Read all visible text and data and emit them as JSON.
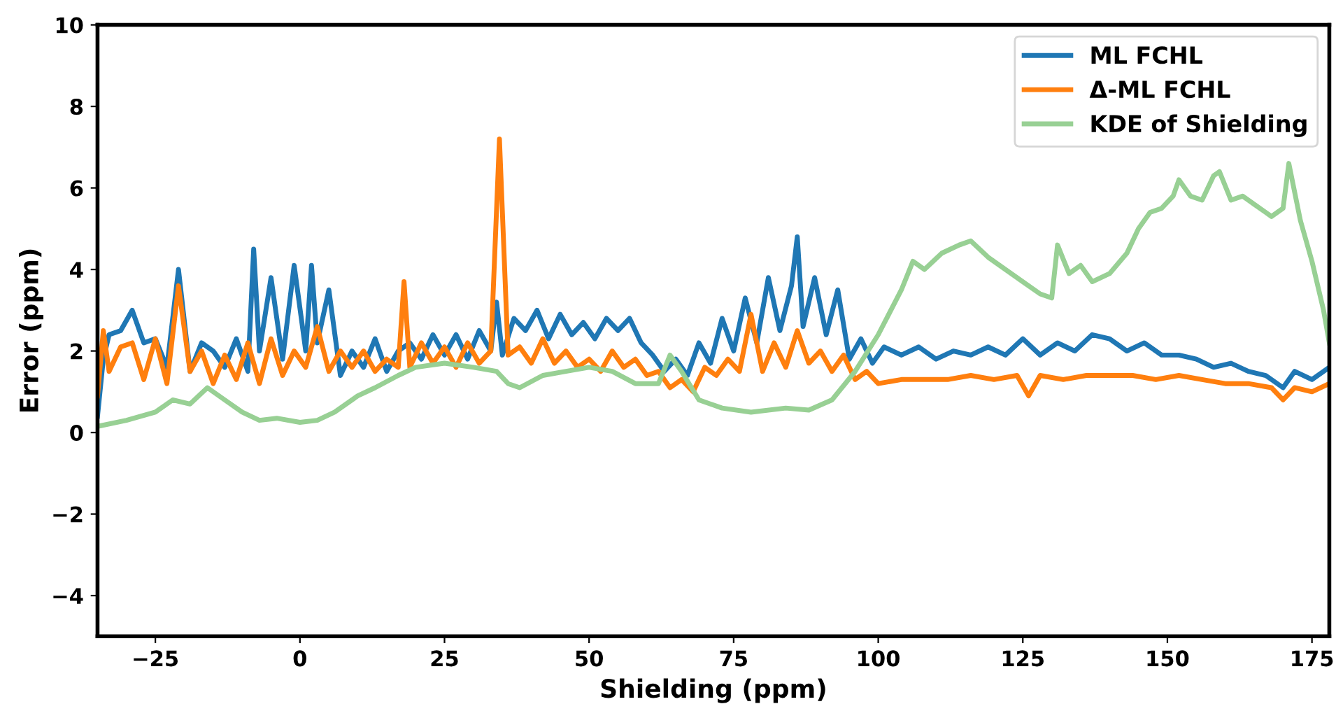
{
  "chart_data": {
    "type": "line",
    "xlabel": "Shielding (ppm)",
    "ylabel": "Error (ppm)",
    "xlim": [
      -35,
      178
    ],
    "ylim": [
      -5,
      10
    ],
    "xticks": [
      {
        "value": -25,
        "label": "−25"
      },
      0,
      25,
      50,
      75,
      100,
      125,
      150,
      175
    ],
    "yticks": [
      {
        "value": -4,
        "label": "−4"
      },
      {
        "value": -2,
        "label": "−2"
      },
      0,
      2,
      4,
      6,
      8,
      10
    ],
    "grid": false,
    "legend": "top right",
    "marker": "none",
    "line_style": "solid",
    "series": [
      {
        "name": "ML FCHL",
        "color": "#1f77b4",
        "x": [
          -35,
          -34,
          -33,
          -31,
          -29,
          -27,
          -25,
          -23,
          -21,
          -19,
          -17,
          -15,
          -13,
          -11,
          -9,
          -8,
          -7,
          -5,
          -3,
          -1,
          1,
          2,
          3,
          5,
          7,
          9,
          11,
          13,
          15,
          17,
          19,
          21,
          23,
          25,
          27,
          29,
          31,
          33,
          34,
          35,
          37,
          39,
          41,
          43,
          45,
          47,
          49,
          51,
          53,
          55,
          57,
          59,
          61,
          63,
          65,
          67,
          69,
          71,
          73,
          75,
          77,
          79,
          81,
          83,
          85,
          86,
          87,
          89,
          91,
          93,
          95,
          97,
          99,
          101,
          104,
          107,
          110,
          113,
          116,
          119,
          122,
          125,
          128,
          131,
          134,
          137,
          140,
          143,
          146,
          149,
          152,
          155,
          158,
          161,
          164,
          167,
          170,
          172,
          175,
          178
        ],
        "values": [
          0.4,
          1.8,
          2.4,
          2.5,
          3.0,
          2.2,
          2.3,
          1.6,
          4.0,
          1.5,
          2.2,
          2.0,
          1.6,
          2.3,
          1.5,
          4.5,
          2.0,
          3.8,
          1.8,
          4.1,
          2.0,
          4.1,
          2.2,
          3.5,
          1.4,
          2.0,
          1.6,
          2.3,
          1.5,
          2.0,
          2.2,
          1.8,
          2.4,
          1.9,
          2.4,
          1.8,
          2.5,
          2.0,
          3.2,
          1.9,
          2.8,
          2.5,
          3.0,
          2.3,
          2.9,
          2.4,
          2.7,
          2.3,
          2.8,
          2.5,
          2.8,
          2.2,
          1.9,
          1.5,
          1.8,
          1.4,
          2.2,
          1.7,
          2.8,
          2.0,
          3.3,
          2.2,
          3.8,
          2.5,
          3.6,
          4.8,
          2.6,
          3.8,
          2.4,
          3.5,
          1.8,
          2.3,
          1.7,
          2.1,
          1.9,
          2.1,
          1.8,
          2.0,
          1.9,
          2.1,
          1.9,
          2.3,
          1.9,
          2.2,
          2.0,
          2.4,
          2.3,
          2.0,
          2.2,
          1.9,
          1.9,
          1.8,
          1.6,
          1.7,
          1.5,
          1.4,
          1.1,
          1.5,
          1.3,
          1.6
        ]
      },
      {
        "name": "Δ-ML FCHL",
        "color": "#ff7f0e",
        "x": [
          -35,
          -34,
          -33,
          -31,
          -29,
          -27,
          -25,
          -23,
          -21,
          -19,
          -17,
          -15,
          -13,
          -11,
          -9,
          -7,
          -5,
          -3,
          -1,
          1,
          3,
          5,
          7,
          9,
          11,
          13,
          15,
          17,
          18,
          19,
          21,
          23,
          25,
          27,
          29,
          31,
          33,
          34.5,
          36,
          38,
          40,
          42,
          44,
          46,
          48,
          50,
          52,
          54,
          56,
          58,
          60,
          62,
          64,
          66,
          68,
          70,
          72,
          74,
          76,
          78,
          80,
          82,
          84,
          86,
          88,
          90,
          92,
          94,
          96,
          98,
          100,
          104,
          108,
          112,
          116,
          120,
          124,
          126,
          128,
          132,
          136,
          140,
          144,
          148,
          152,
          156,
          160,
          164,
          168,
          170,
          172,
          175,
          178
        ],
        "values": [
          0.9,
          2.5,
          1.5,
          2.1,
          2.2,
          1.3,
          2.3,
          1.2,
          3.6,
          1.5,
          2.0,
          1.2,
          1.9,
          1.3,
          2.2,
          1.2,
          2.3,
          1.4,
          2.0,
          1.6,
          2.6,
          1.5,
          2.0,
          1.6,
          2.0,
          1.5,
          1.8,
          1.6,
          3.7,
          1.6,
          2.2,
          1.7,
          2.1,
          1.6,
          2.2,
          1.7,
          2.0,
          7.2,
          1.9,
          2.1,
          1.7,
          2.3,
          1.7,
          2.0,
          1.6,
          1.8,
          1.5,
          2.0,
          1.6,
          1.8,
          1.4,
          1.5,
          1.1,
          1.3,
          1.0,
          1.6,
          1.4,
          1.8,
          1.5,
          2.9,
          1.5,
          2.2,
          1.6,
          2.5,
          1.7,
          2.0,
          1.5,
          1.9,
          1.3,
          1.5,
          1.2,
          1.3,
          1.3,
          1.3,
          1.4,
          1.3,
          1.4,
          0.9,
          1.4,
          1.3,
          1.4,
          1.4,
          1.4,
          1.3,
          1.4,
          1.3,
          1.2,
          1.2,
          1.1,
          0.8,
          1.1,
          1.0,
          1.2
        ]
      },
      {
        "name": "KDE of Shielding",
        "color": "#98d094",
        "x": [
          -35,
          -30,
          -25,
          -22,
          -19,
          -16,
          -13,
          -10,
          -7,
          -4,
          0,
          3,
          6,
          10,
          13,
          17,
          20,
          25,
          30,
          34,
          36,
          38,
          42,
          46,
          50,
          54,
          58,
          62,
          64,
          66,
          69,
          73,
          78,
          84,
          88,
          92,
          96,
          100,
          104,
          106,
          108,
          111,
          114,
          116,
          119,
          122,
          125,
          128,
          130,
          131,
          133,
          135,
          137,
          140,
          143,
          145,
          147,
          149,
          151,
          152,
          154,
          156,
          158,
          159,
          161,
          163,
          165,
          167,
          168,
          170,
          171,
          173,
          175,
          177,
          178
        ],
        "values": [
          0.15,
          0.3,
          0.5,
          0.8,
          0.7,
          1.1,
          0.8,
          0.5,
          0.3,
          0.35,
          0.25,
          0.3,
          0.5,
          0.9,
          1.1,
          1.4,
          1.6,
          1.7,
          1.6,
          1.5,
          1.2,
          1.1,
          1.4,
          1.5,
          1.6,
          1.5,
          1.2,
          1.2,
          1.9,
          1.5,
          0.8,
          0.6,
          0.5,
          0.6,
          0.55,
          0.8,
          1.5,
          2.4,
          3.5,
          4.2,
          4.0,
          4.4,
          4.6,
          4.7,
          4.3,
          4.0,
          3.7,
          3.4,
          3.3,
          4.6,
          3.9,
          4.1,
          3.7,
          3.9,
          4.4,
          5.0,
          5.4,
          5.5,
          5.8,
          6.2,
          5.8,
          5.7,
          6.3,
          6.4,
          5.7,
          5.8,
          5.6,
          5.4,
          5.3,
          5.5,
          6.6,
          5.2,
          4.2,
          3.0,
          2.2
        ]
      }
    ]
  }
}
